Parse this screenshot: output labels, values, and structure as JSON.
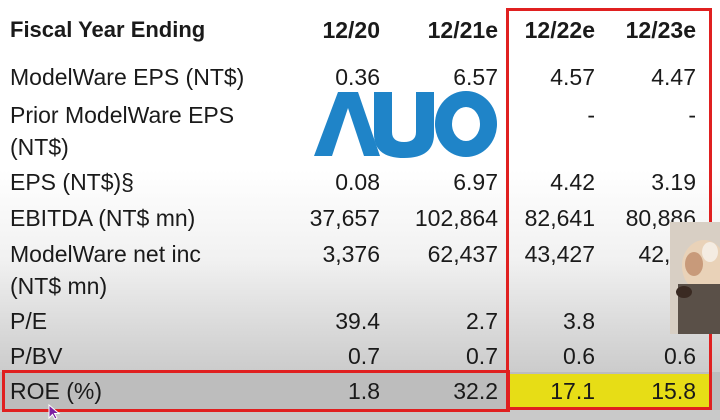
{
  "header": {
    "label": "Fiscal Year Ending",
    "columns": [
      "12/20",
      "12/21e",
      "12/22e",
      "12/23e"
    ]
  },
  "rows": [
    {
      "label_lines": [
        "ModelWare EPS (NT$)"
      ],
      "values": [
        "0.36",
        "6.57",
        "4.57",
        "4.47"
      ]
    },
    {
      "label_lines": [
        "Prior ModelWare EPS",
        "(NT$)"
      ],
      "values": [
        "",
        "",
        "-",
        "-"
      ]
    },
    {
      "label_lines": [
        "EPS (NT$)§"
      ],
      "values": [
        "0.08",
        "6.97",
        "4.42",
        "3.19"
      ]
    },
    {
      "label_lines": [
        "EBITDA (NT$ mn)"
      ],
      "values": [
        "37,657",
        "102,864",
        "82,641",
        "80,886"
      ]
    },
    {
      "label_lines": [
        "ModelWare net inc",
        "(NT$ mn)"
      ],
      "values": [
        "3,376",
        "62,437",
        "43,427",
        "42,47"
      ]
    },
    {
      "label_lines": [
        "P/E"
      ],
      "values": [
        "39.4",
        "2.7",
        "3.8",
        "3."
      ]
    },
    {
      "label_lines": [
        "P/BV"
      ],
      "values": [
        "0.7",
        "0.7",
        "0.6",
        "0.6"
      ]
    },
    {
      "label_lines": [
        "ROE (%)"
      ],
      "values": [
        "1.8",
        "32.2",
        "17.1",
        "15.8"
      ]
    }
  ],
  "logo": {
    "text": "AUO",
    "color": "#1f84c8"
  },
  "colors": {
    "highlight_box": "#e02020",
    "roe_highlight": "#e7dd16",
    "roe_band": "#bdbdbd"
  }
}
